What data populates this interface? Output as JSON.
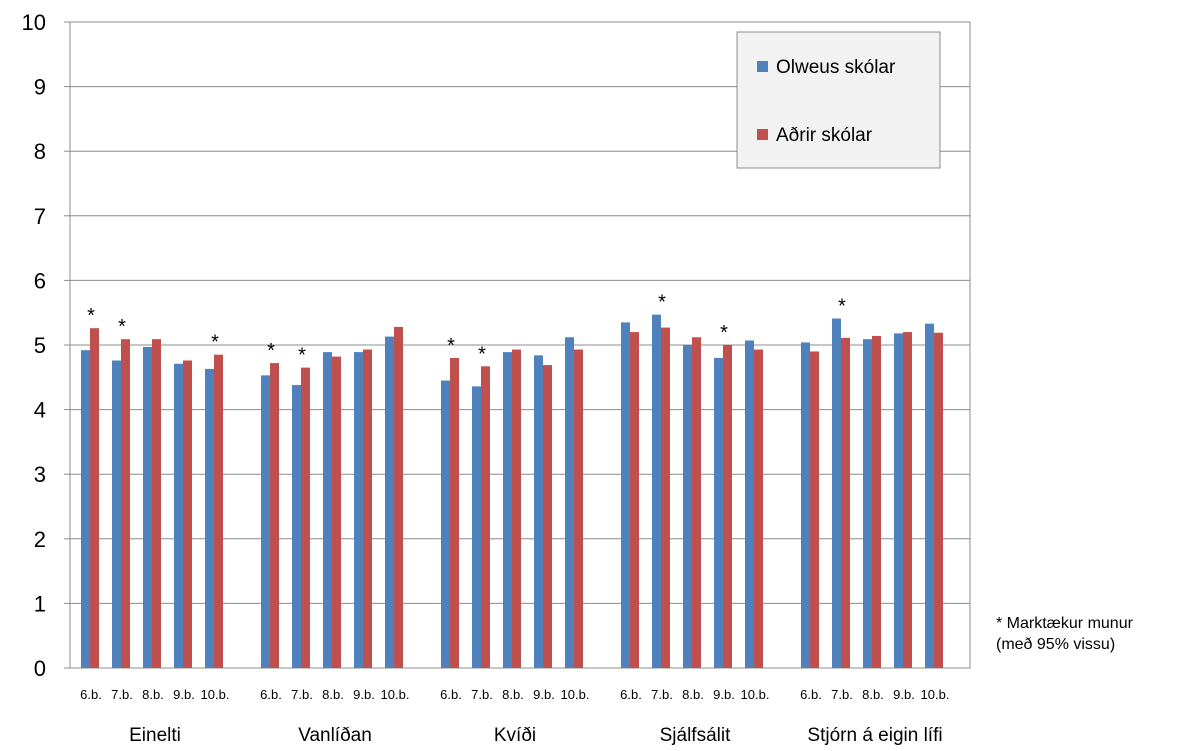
{
  "chart_data": {
    "type": "bar",
    "ylim": [
      0,
      10
    ],
    "yticks": [
      "0",
      "1",
      "2",
      "3",
      "4",
      "5",
      "6",
      "7",
      "8",
      "9",
      "10"
    ],
    "grid": true,
    "legend_placement": "top-right",
    "groups": [
      {
        "label": "Einelti",
        "categories": [
          "6.b.",
          "7.b.",
          "8.b.",
          "9.b.",
          "10.b."
        ],
        "olweus": [
          4.92,
          4.76,
          4.97,
          4.71,
          4.63
        ],
        "adrir": [
          5.26,
          5.09,
          5.09,
          4.76,
          4.85
        ],
        "significant": [
          true,
          true,
          false,
          false,
          true
        ]
      },
      {
        "label": "Vanlíðan",
        "categories": [
          "6.b.",
          "7.b.",
          "8.b.",
          "9.b.",
          "10.b."
        ],
        "olweus": [
          4.53,
          4.38,
          4.89,
          4.89,
          5.13
        ],
        "adrir": [
          4.72,
          4.65,
          4.82,
          4.93,
          5.28
        ],
        "significant": [
          true,
          true,
          false,
          false,
          false
        ]
      },
      {
        "label": "Kvíði",
        "categories": [
          "6.b.",
          "7.b.",
          "8.b.",
          "9.b.",
          "10.b."
        ],
        "olweus": [
          4.45,
          4.36,
          4.89,
          4.84,
          5.12
        ],
        "adrir": [
          4.8,
          4.67,
          4.93,
          4.69,
          4.93
        ],
        "significant": [
          true,
          true,
          false,
          false,
          false
        ]
      },
      {
        "label": "Sjálfsálit",
        "categories": [
          "6.b.",
          "7.b.",
          "8.b.",
          "9.b.",
          "10.b."
        ],
        "olweus": [
          5.35,
          5.47,
          5.0,
          4.8,
          5.07
        ],
        "adrir": [
          5.2,
          5.27,
          5.12,
          5.0,
          4.93
        ],
        "significant": [
          false,
          true,
          false,
          true,
          false
        ]
      },
      {
        "label": "Stjórn á eigin lífi",
        "categories": [
          "6.b.",
          "7.b.",
          "8.b.",
          "9.b.",
          "10.b."
        ],
        "olweus": [
          5.04,
          5.41,
          5.09,
          5.18,
          5.33
        ],
        "adrir": [
          4.9,
          5.11,
          5.14,
          5.2,
          5.19
        ],
        "significant": [
          false,
          true,
          false,
          false,
          false
        ]
      }
    ],
    "series": [
      {
        "name": "Olweus skólar",
        "key": "olweus",
        "color": "#4f81bd"
      },
      {
        "name": "Aðrir skólar",
        "key": "adrir",
        "color": "#c0504d"
      }
    ],
    "significance_marker": "*",
    "note": {
      "line1": "* Marktækur munur",
      "line2": "(með 95% vissu)"
    }
  }
}
